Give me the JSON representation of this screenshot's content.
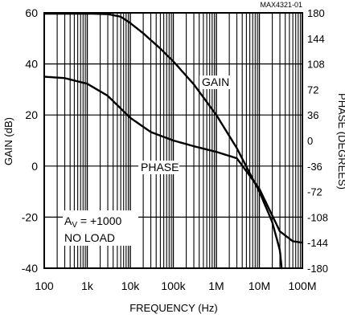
{
  "chart_data": {
    "type": "line",
    "id_label": "MAX4321-01",
    "xlabel": "FREQUENCY (Hz)",
    "ylabel_left": "GAIN (dB)",
    "ylabel_right": "PHASE (DEGREES)",
    "x_scale": "log",
    "xlim": [
      100,
      100000000
    ],
    "ylim_left": [
      -40,
      60
    ],
    "ylim_right": [
      -180,
      180
    ],
    "grid": true,
    "x_ticks": [
      {
        "value": 100,
        "label": "100"
      },
      {
        "value": 1000,
        "label": "1k"
      },
      {
        "value": 10000,
        "label": "10k"
      },
      {
        "value": 100000,
        "label": "100k"
      },
      {
        "value": 1000000,
        "label": "1M"
      },
      {
        "value": 10000000,
        "label": "10M"
      },
      {
        "value": 100000000,
        "label": "100M"
      }
    ],
    "y_ticks_left": [
      {
        "value": 60,
        "label": "60"
      },
      {
        "value": 40,
        "label": "40"
      },
      {
        "value": 20,
        "label": "20"
      },
      {
        "value": 0,
        "label": "0"
      },
      {
        "value": -20,
        "label": "-20"
      },
      {
        "value": -40,
        "label": "-40"
      }
    ],
    "y_ticks_right": [
      {
        "value": 180,
        "label": "180"
      },
      {
        "value": 144,
        "label": "144"
      },
      {
        "value": 108,
        "label": "108"
      },
      {
        "value": 72,
        "label": "72"
      },
      {
        "value": 36,
        "label": "36"
      },
      {
        "value": 0,
        "label": "0"
      },
      {
        "value": -36,
        "label": "-36"
      },
      {
        "value": -72,
        "label": "-72"
      },
      {
        "value": -108,
        "label": "-108"
      },
      {
        "value": -144,
        "label": "-144"
      },
      {
        "value": -180,
        "label": "-180"
      }
    ],
    "series": [
      {
        "name": "GAIN",
        "axis": "left",
        "x": [
          100,
          1000,
          3000,
          6000,
          10000,
          20000,
          50000,
          100000,
          300000,
          1000000,
          3000000,
          10000000,
          20000000,
          30000000,
          33000000
        ],
        "y": [
          59.7,
          59.7,
          59.5,
          58.5,
          56,
          52,
          46,
          41,
          32,
          20,
          7,
          -10,
          -22,
          -33,
          -40
        ]
      },
      {
        "name": "PHASE",
        "axis": "right",
        "x": [
          100,
          300,
          1000,
          3000,
          10000,
          30000,
          100000,
          300000,
          1000000,
          3000000,
          10000000,
          30000000,
          60000000,
          100000000
        ],
        "y": [
          90,
          88,
          80,
          63,
          32,
          12,
          0,
          -8,
          -16,
          -25,
          -68,
          -128,
          -142,
          -144
        ]
      }
    ],
    "annotations": [
      {
        "text": "GAIN",
        "series": "GAIN"
      },
      {
        "text": "PHASE",
        "series": "PHASE"
      },
      {
        "text_main": "A",
        "text_sub": "V",
        "text_rest": " = +1000"
      },
      {
        "text": "NO LOAD"
      }
    ]
  }
}
